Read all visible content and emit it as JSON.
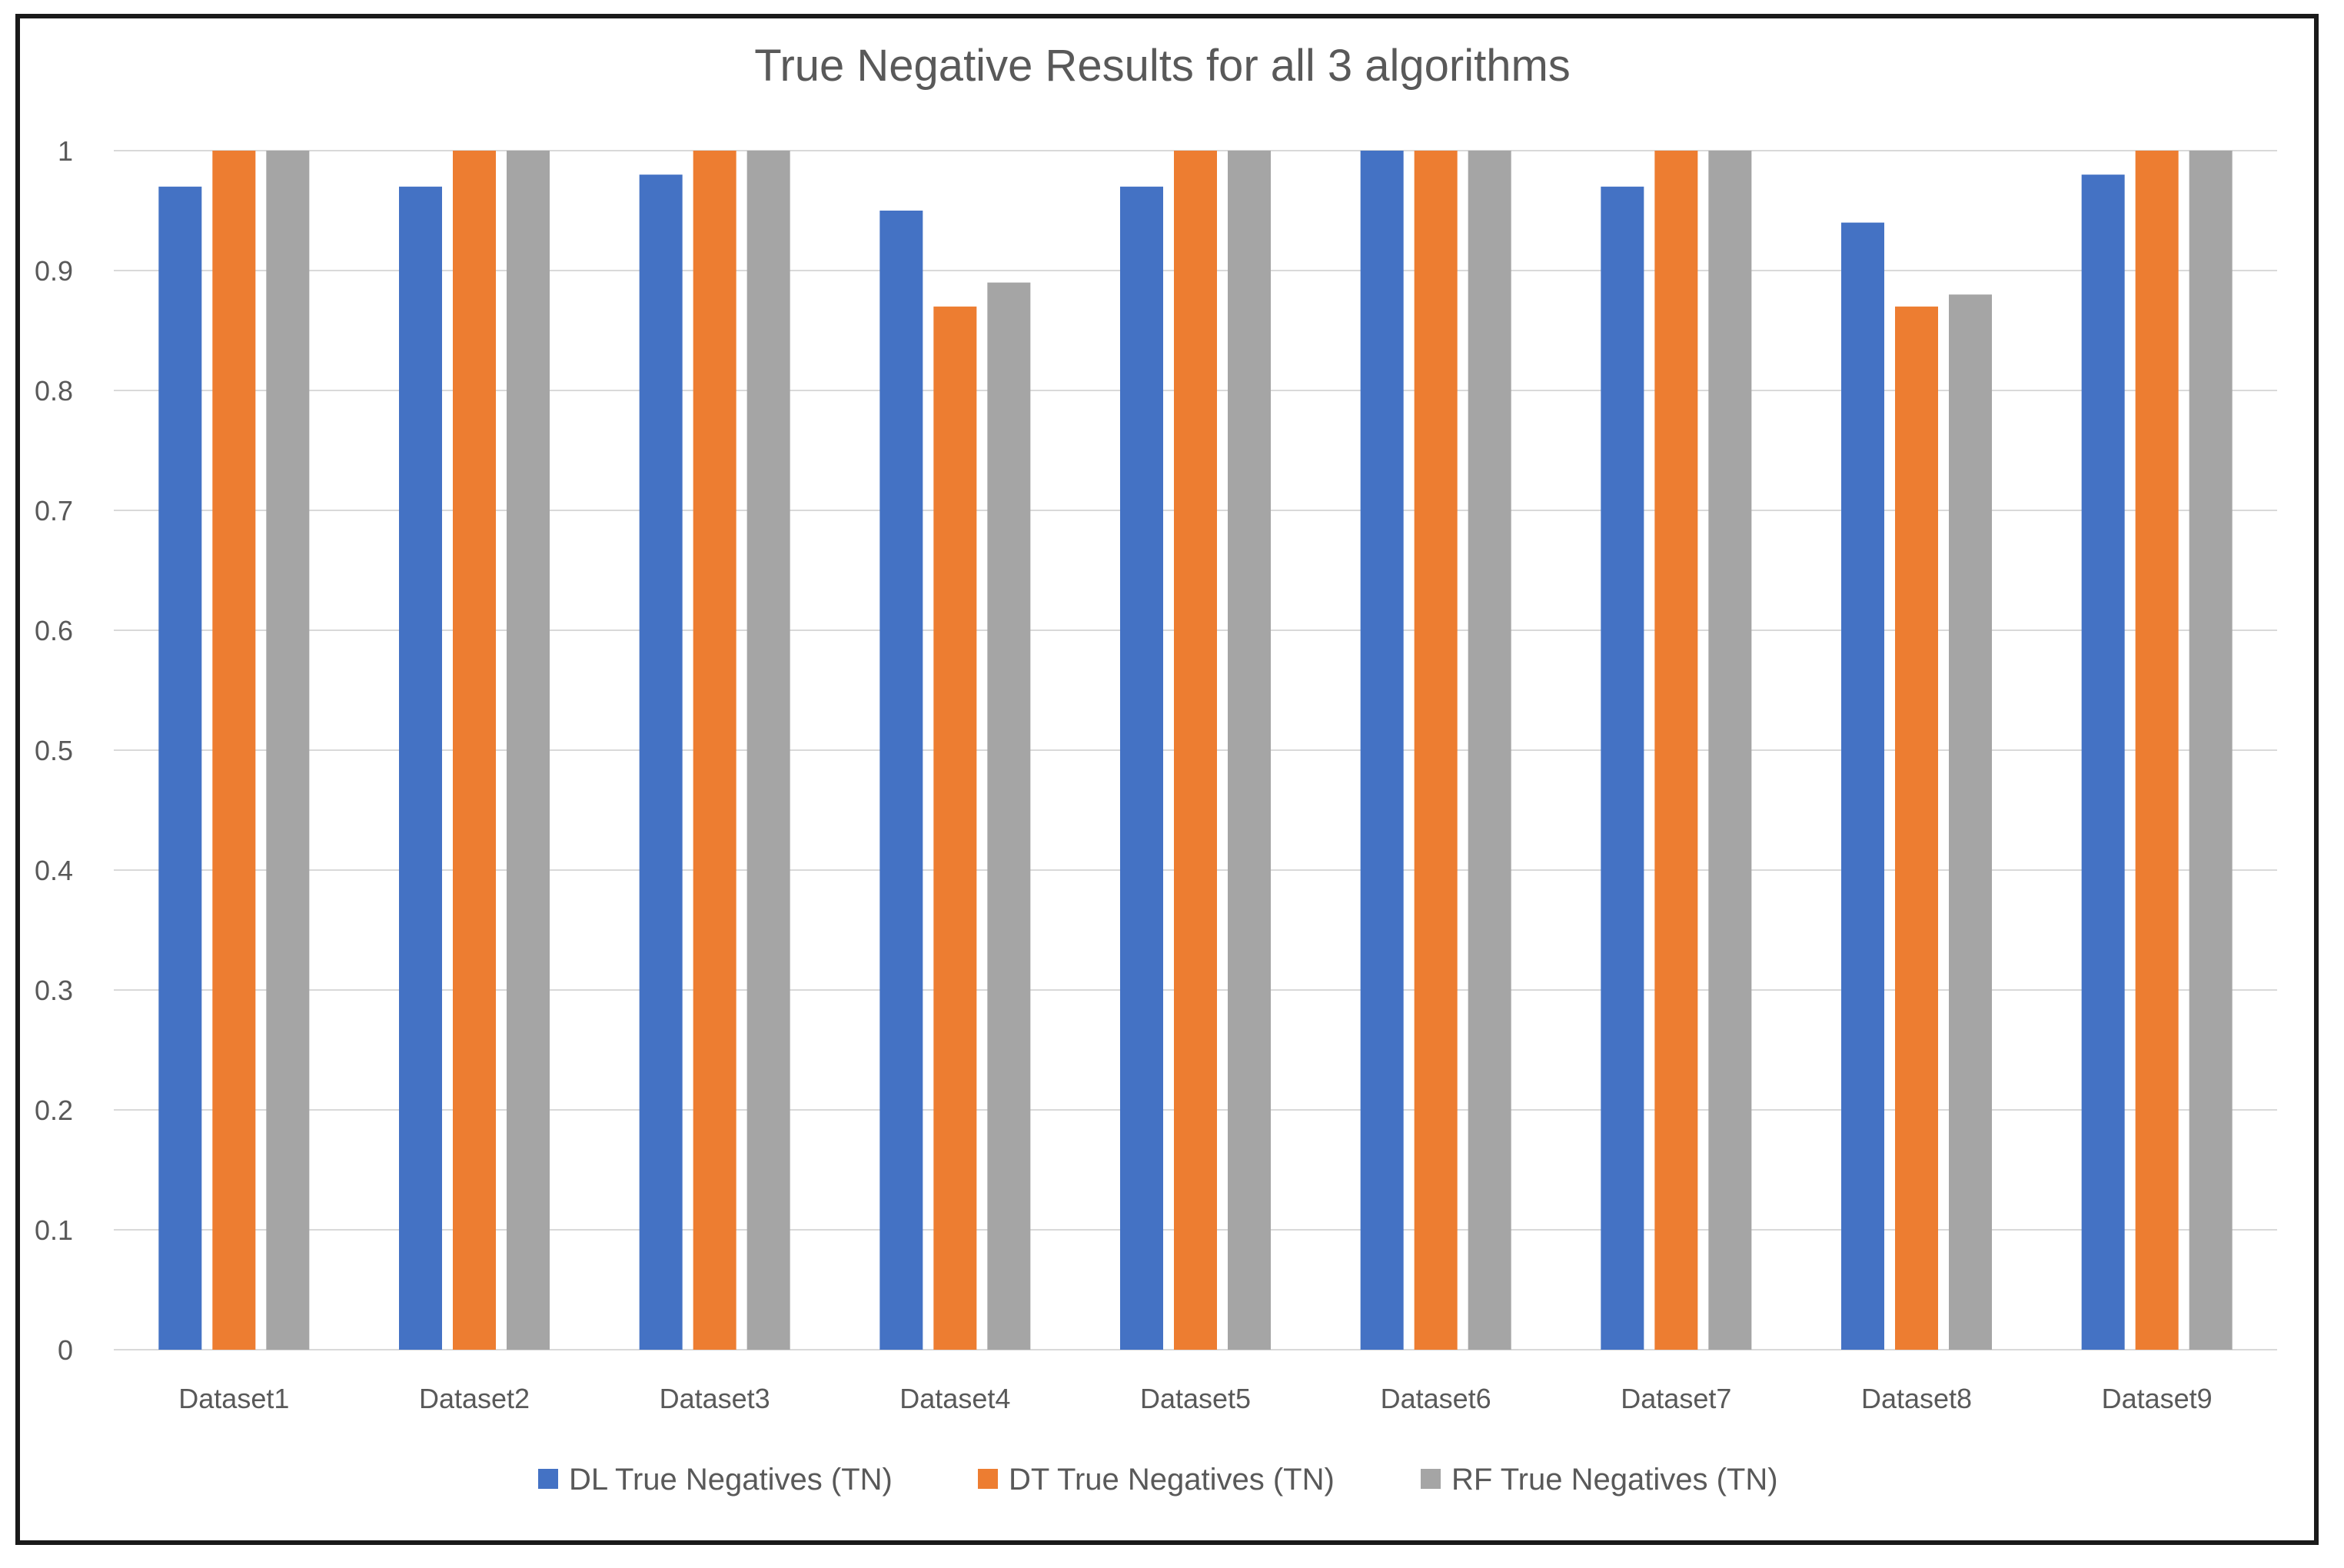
{
  "chart_data": {
    "type": "bar",
    "title": "True Negative Results for all 3 algorithms",
    "xlabel": "",
    "ylabel": "",
    "ylim": [
      0,
      1
    ],
    "yticks": [
      "0",
      "0.1",
      "0.2",
      "0.3",
      "0.4",
      "0.5",
      "0.6",
      "0.7",
      "0.8",
      "0.9",
      "1"
    ],
    "categories": [
      "Dataset1",
      "Dataset2",
      "Dataset3",
      "Dataset4",
      "Dataset5",
      "Dataset6",
      "Dataset7",
      "Dataset8",
      "Dataset9"
    ],
    "series": [
      {
        "name": "DL True Negatives (TN)",
        "color": "#4472c4",
        "values": [
          0.97,
          0.97,
          0.98,
          0.95,
          0.97,
          1.0,
          0.97,
          0.94,
          0.98
        ]
      },
      {
        "name": "DT True Negatives (TN)",
        "color": "#ed7d31",
        "values": [
          1.0,
          1.0,
          1.0,
          0.87,
          1.0,
          1.0,
          1.0,
          0.87,
          1.0
        ]
      },
      {
        "name": "RF True Negatives (TN)",
        "color": "#a5a5a5",
        "values": [
          1.0,
          1.0,
          1.0,
          0.89,
          1.0,
          1.0,
          1.0,
          0.88,
          1.0
        ]
      }
    ],
    "grid": true,
    "legend_position": "bottom"
  }
}
